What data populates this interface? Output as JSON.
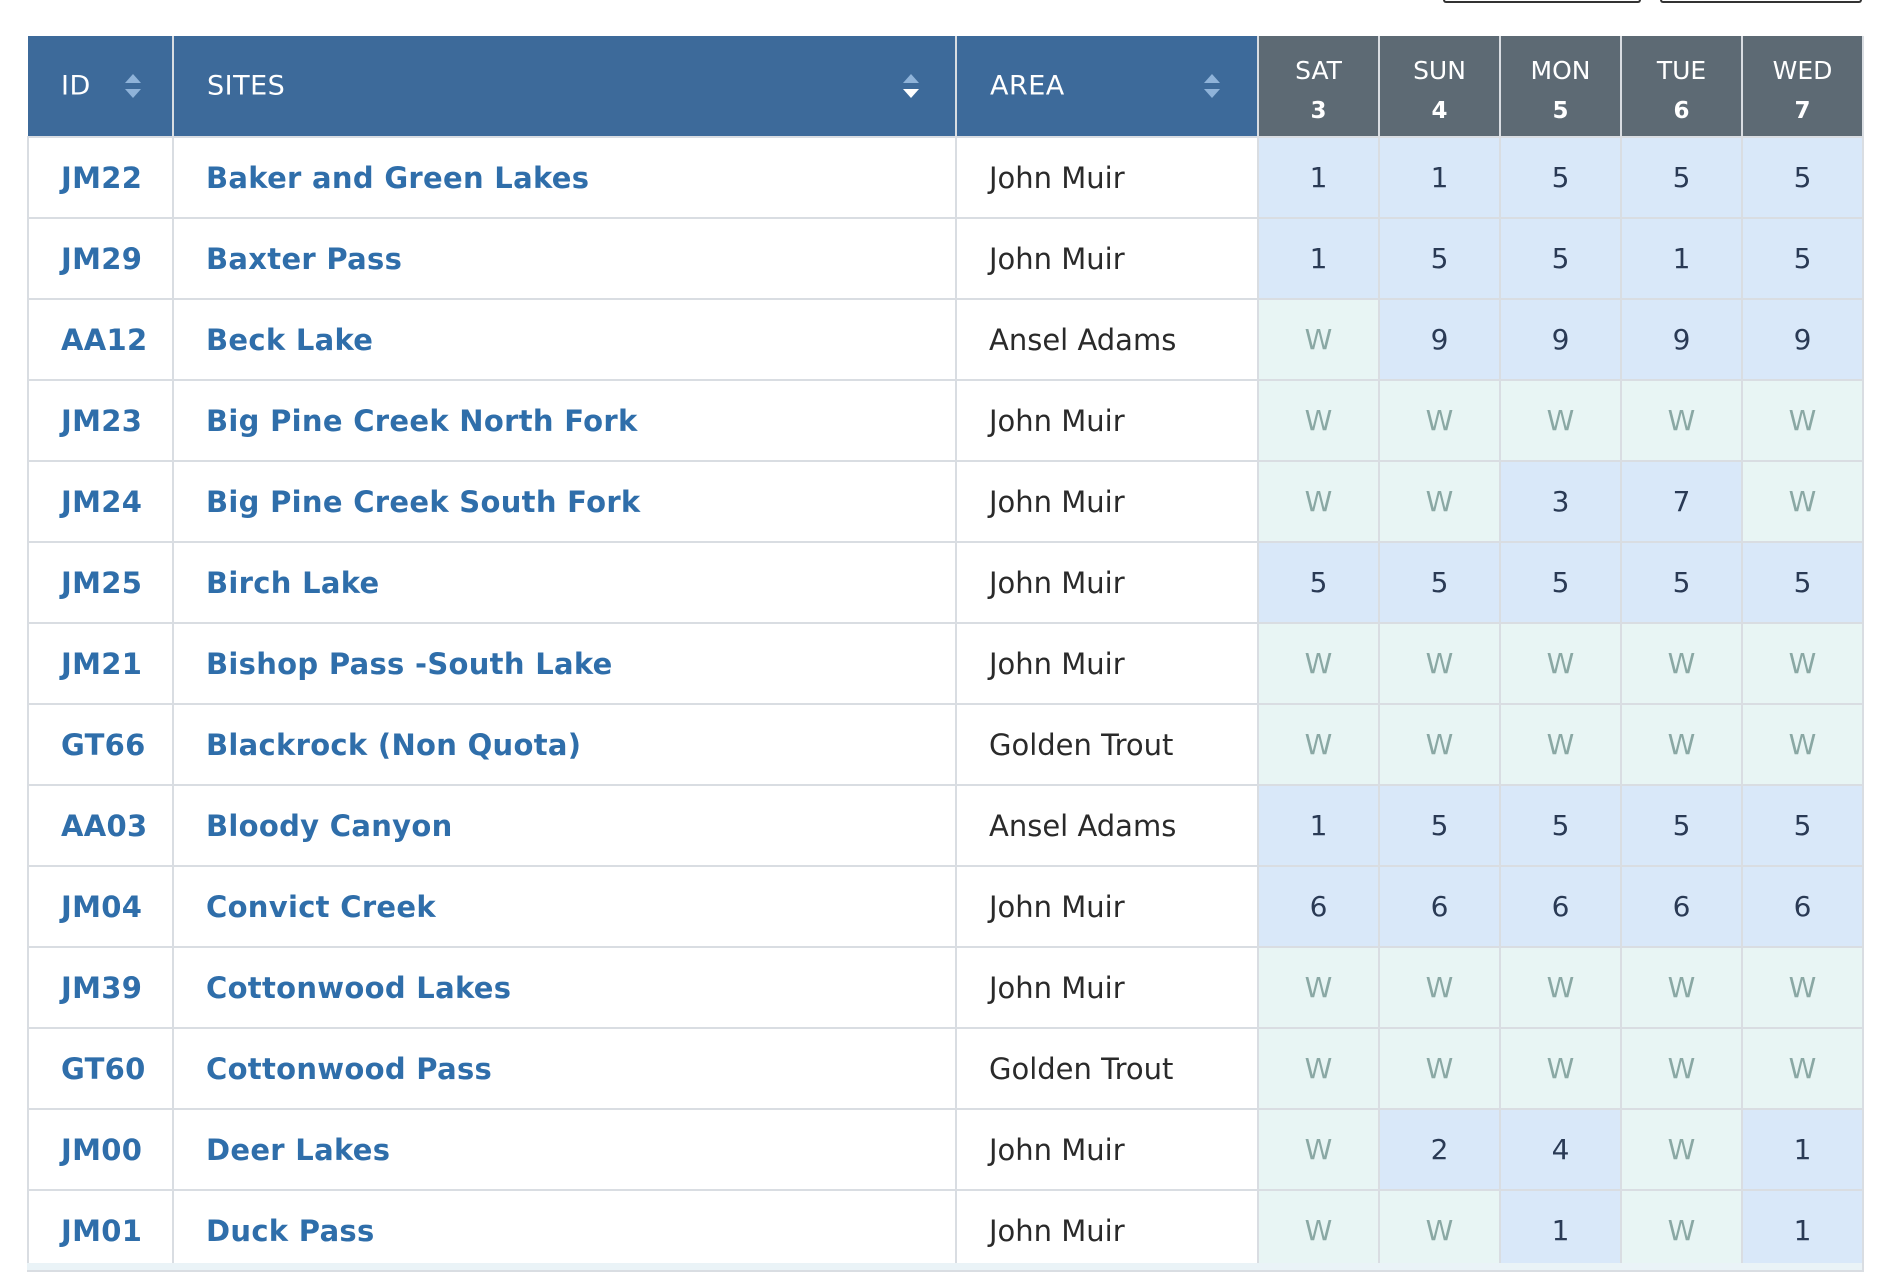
{
  "header": {
    "id_label": "ID",
    "sites_label": "SITES",
    "area_label": "AREA",
    "days": [
      {
        "name": "SAT",
        "num": "3"
      },
      {
        "name": "SUN",
        "num": "4"
      },
      {
        "name": "MON",
        "num": "5"
      },
      {
        "name": "TUE",
        "num": "6"
      },
      {
        "name": "WED",
        "num": "7"
      }
    ]
  },
  "colors": {
    "header_blue": "#3d6a9a",
    "header_gray": "#5d6a74",
    "link_blue": "#2f6eaa",
    "available_bg": "#d9e8f9",
    "waitlist_bg": "#e8f5f4"
  },
  "rows": [
    {
      "id": "JM22",
      "site": "Baker and Green Lakes",
      "area": "John Muir",
      "days": [
        "1",
        "1",
        "5",
        "5",
        "5"
      ]
    },
    {
      "id": "JM29",
      "site": "Baxter Pass",
      "area": "John Muir",
      "days": [
        "1",
        "5",
        "5",
        "1",
        "5"
      ]
    },
    {
      "id": "AA12",
      "site": "Beck Lake",
      "area": "Ansel Adams",
      "days": [
        "W",
        "9",
        "9",
        "9",
        "9"
      ]
    },
    {
      "id": "JM23",
      "site": "Big Pine Creek North Fork",
      "area": "John Muir",
      "days": [
        "W",
        "W",
        "W",
        "W",
        "W"
      ]
    },
    {
      "id": "JM24",
      "site": "Big Pine Creek South Fork",
      "area": "John Muir",
      "days": [
        "W",
        "W",
        "3",
        "7",
        "W"
      ]
    },
    {
      "id": "JM25",
      "site": "Birch Lake",
      "area": "John Muir",
      "days": [
        "5",
        "5",
        "5",
        "5",
        "5"
      ]
    },
    {
      "id": "JM21",
      "site": "Bishop Pass -South Lake",
      "area": "John Muir",
      "days": [
        "W",
        "W",
        "W",
        "W",
        "W"
      ]
    },
    {
      "id": "GT66",
      "site": "Blackrock (Non Quota)",
      "area": "Golden Trout",
      "days": [
        "W",
        "W",
        "W",
        "W",
        "W"
      ]
    },
    {
      "id": "AA03",
      "site": "Bloody Canyon",
      "area": "Ansel Adams",
      "days": [
        "1",
        "5",
        "5",
        "5",
        "5"
      ]
    },
    {
      "id": "JM04",
      "site": "Convict Creek",
      "area": "John Muir",
      "days": [
        "6",
        "6",
        "6",
        "6",
        "6"
      ]
    },
    {
      "id": "JM39",
      "site": "Cottonwood Lakes",
      "area": "John Muir",
      "days": [
        "W",
        "W",
        "W",
        "W",
        "W"
      ]
    },
    {
      "id": "GT60",
      "site": "Cottonwood Pass",
      "area": "Golden Trout",
      "days": [
        "W",
        "W",
        "W",
        "W",
        "W"
      ]
    },
    {
      "id": "JM00",
      "site": "Deer Lakes",
      "area": "John Muir",
      "days": [
        "W",
        "2",
        "4",
        "W",
        "1"
      ]
    },
    {
      "id": "JM01",
      "site": "Duck Pass",
      "area": "John Muir",
      "days": [
        "W",
        "W",
        "1",
        "W",
        "1"
      ]
    }
  ]
}
